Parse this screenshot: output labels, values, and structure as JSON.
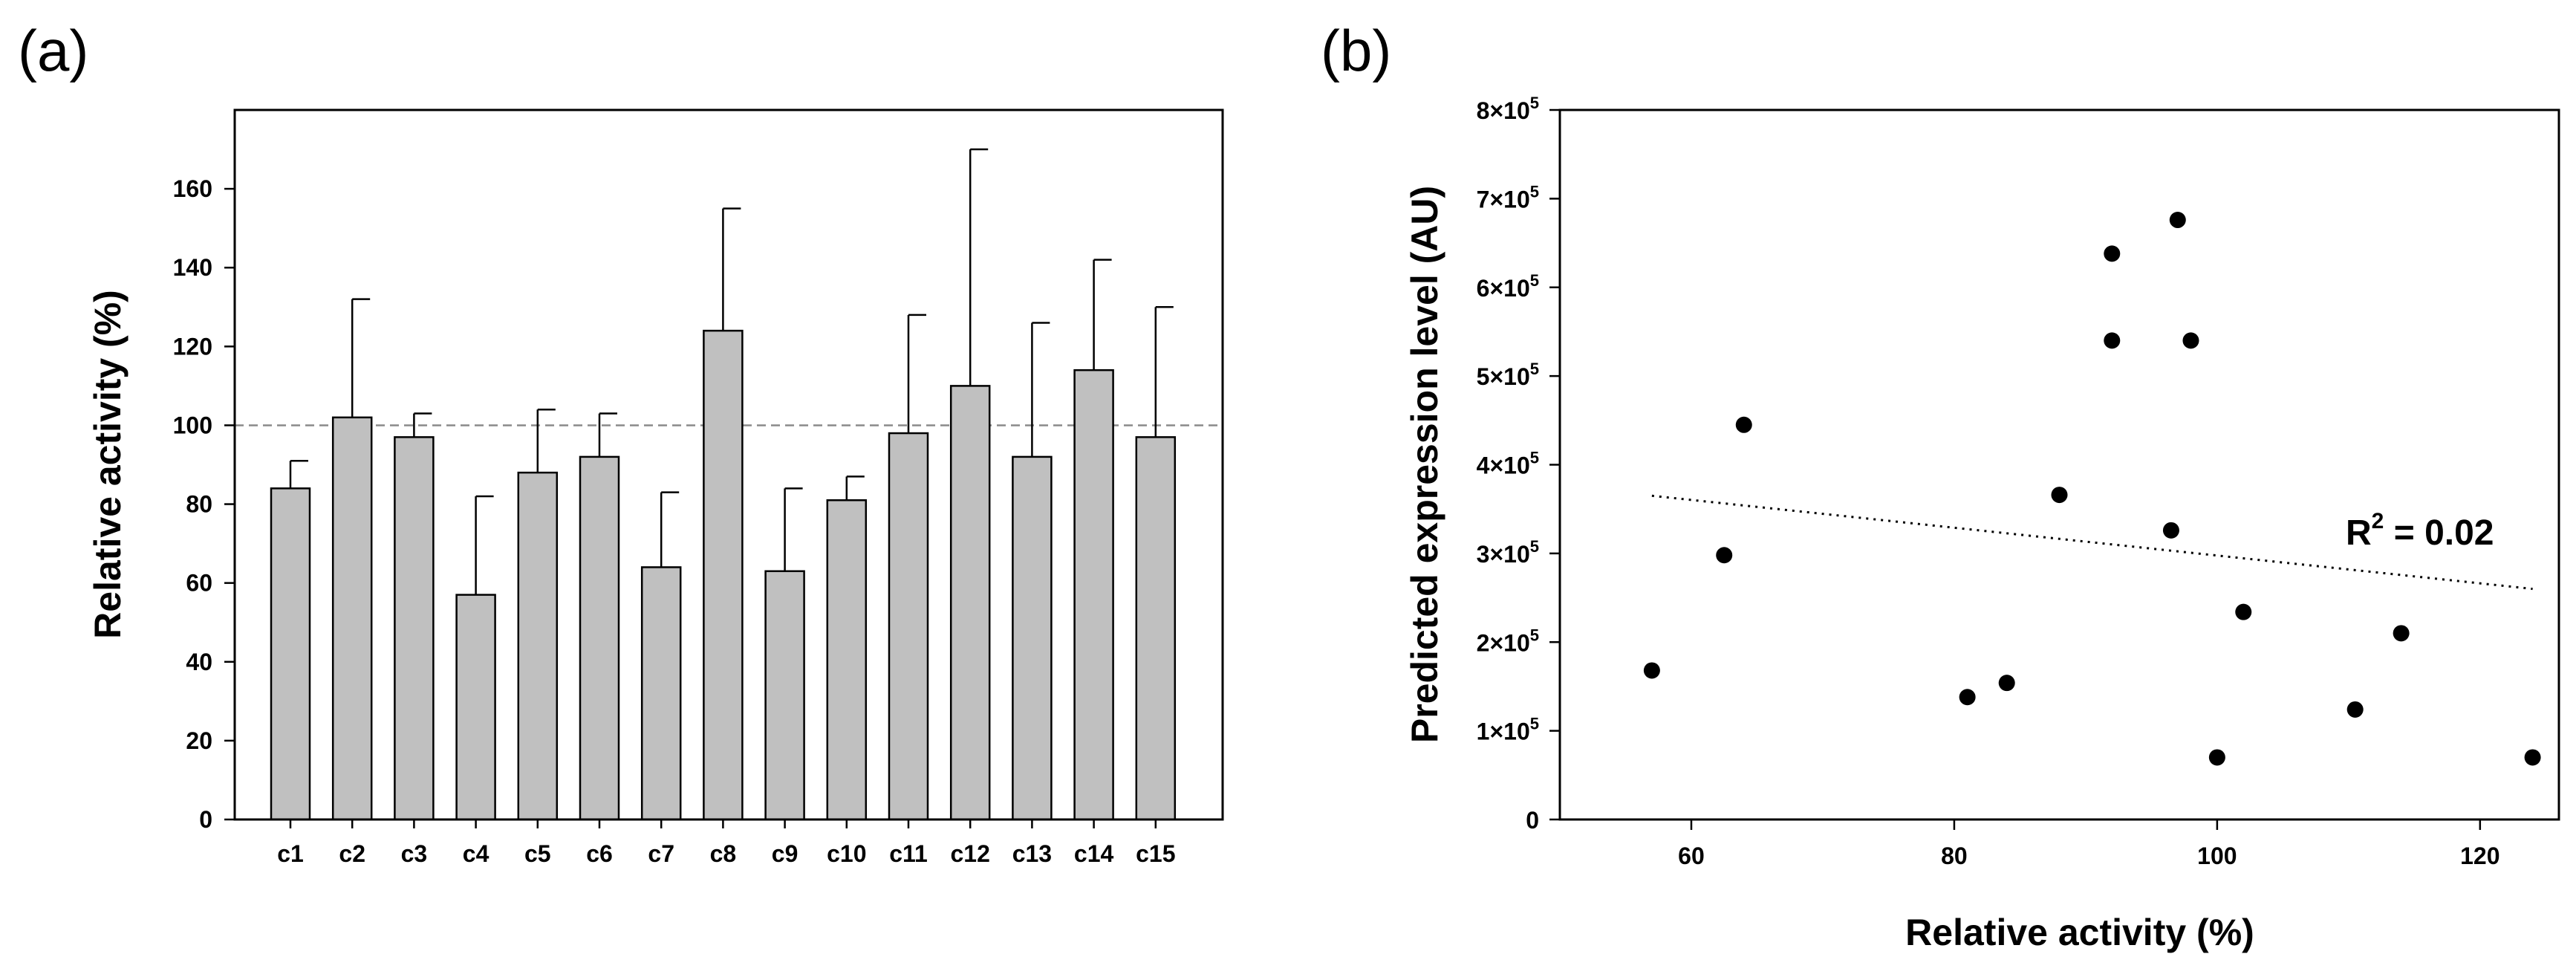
{
  "chart_data": [
    {
      "panel_label": "(a)",
      "type": "bar",
      "title": "",
      "xlabel": "",
      "ylabel": "Relative activity (%)",
      "ylim": [
        0,
        180
      ],
      "yticks": [
        0,
        20,
        40,
        60,
        80,
        100,
        120,
        140,
        160
      ],
      "categories": [
        "c1",
        "c2",
        "c3",
        "c4",
        "c5",
        "c6",
        "c7",
        "c8",
        "c9",
        "c10",
        "c11",
        "c12",
        "c13",
        "c14",
        "c15"
      ],
      "values": [
        84,
        102,
        97,
        57,
        88,
        92,
        64,
        124,
        63,
        81,
        98,
        110,
        92,
        114,
        97
      ],
      "error_upper": [
        7,
        30,
        6,
        25,
        16,
        11,
        19,
        31,
        21,
        6,
        30,
        60,
        34,
        28,
        33
      ],
      "reference_line": {
        "value": 100,
        "style": "dashed"
      },
      "bar_color": "#c0c0c0"
    },
    {
      "panel_label": "(b)",
      "type": "scatter",
      "title": "",
      "xlabel": "Relative activity (%)",
      "ylabel": "Predicted expression level (AU)",
      "xlim": [
        50,
        126
      ],
      "ylim": [
        0,
        800000
      ],
      "xticks": [
        60,
        80,
        100,
        120
      ],
      "yticks": [
        {
          "value": 0,
          "mantissa": "0",
          "exponent": ""
        },
        {
          "value": 100000,
          "mantissa": "1×10",
          "exponent": "5"
        },
        {
          "value": 200000,
          "mantissa": "2×10",
          "exponent": "5"
        },
        {
          "value": 300000,
          "mantissa": "3×10",
          "exponent": "5"
        },
        {
          "value": 400000,
          "mantissa": "4×10",
          "exponent": "5"
        },
        {
          "value": 500000,
          "mantissa": "5×10",
          "exponent": "5"
        },
        {
          "value": 600000,
          "mantissa": "6×10",
          "exponent": "5"
        },
        {
          "value": 700000,
          "mantissa": "7×10",
          "exponent": "5"
        },
        {
          "value": 800000,
          "mantissa": "8×10",
          "exponent": "5"
        }
      ],
      "points": [
        {
          "x": 57,
          "y": 168000
        },
        {
          "x": 62.5,
          "y": 298000
        },
        {
          "x": 64,
          "y": 445000
        },
        {
          "x": 81,
          "y": 138000
        },
        {
          "x": 84,
          "y": 154000
        },
        {
          "x": 88,
          "y": 366000
        },
        {
          "x": 92,
          "y": 638000
        },
        {
          "x": 92,
          "y": 540000
        },
        {
          "x": 96.5,
          "y": 326000
        },
        {
          "x": 97,
          "y": 676000
        },
        {
          "x": 98,
          "y": 540000
        },
        {
          "x": 100,
          "y": 70000
        },
        {
          "x": 102,
          "y": 234000
        },
        {
          "x": 110.5,
          "y": 124000
        },
        {
          "x": 114,
          "y": 210000
        },
        {
          "x": 124,
          "y": 70000
        }
      ],
      "trendline": {
        "x": [
          57,
          124
        ],
        "y": [
          365000,
          260000
        ],
        "style": "dotted"
      },
      "annotation": {
        "base": "R",
        "superscript": "2",
        "text": " = 0.02"
      }
    }
  ]
}
